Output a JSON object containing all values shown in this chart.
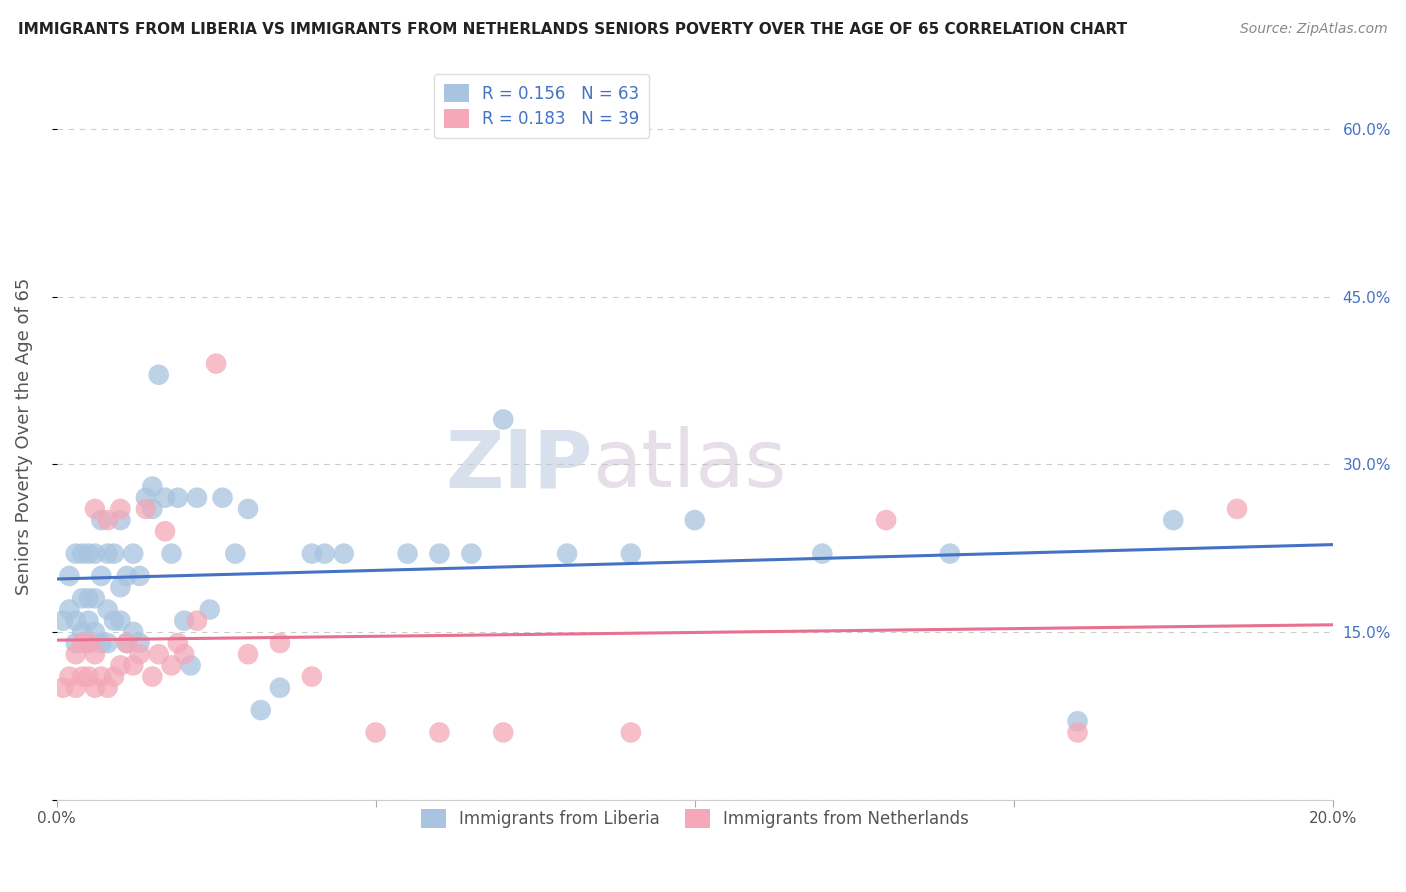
{
  "title": "IMMIGRANTS FROM LIBERIA VS IMMIGRANTS FROM NETHERLANDS SENIORS POVERTY OVER THE AGE OF 65 CORRELATION CHART",
  "source": "Source: ZipAtlas.com",
  "ylabel": "Seniors Poverty Over the Age of 65",
  "xlim": [
    0.0,
    0.2
  ],
  "ylim": [
    0.0,
    0.65
  ],
  "xticks": [
    0.0,
    0.05,
    0.1,
    0.15,
    0.2
  ],
  "xtick_labels": [
    "0.0%",
    "",
    "",
    "",
    "20.0%"
  ],
  "yticks": [
    0.0,
    0.15,
    0.3,
    0.45,
    0.6
  ],
  "ytick_labels_right": [
    "",
    "15.0%",
    "30.0%",
    "45.0%",
    "60.0%"
  ],
  "grid_color": "#cccccc",
  "background_color": "#ffffff",
  "liberia_color": "#a8c4e0",
  "netherlands_color": "#f4a8b8",
  "liberia_R": 0.156,
  "liberia_N": 63,
  "netherlands_R": 0.183,
  "netherlands_N": 39,
  "liberia_line_color": "#4472c4",
  "netherlands_line_color": "#e87090",
  "watermark_zip": "ZIP",
  "watermark_atlas": "atlas",
  "legend_label_liberia": "Immigrants from Liberia",
  "legend_label_netherlands": "Immigrants from Netherlands",
  "liberia_x": [
    0.001,
    0.002,
    0.002,
    0.003,
    0.003,
    0.003,
    0.004,
    0.004,
    0.004,
    0.005,
    0.005,
    0.005,
    0.005,
    0.006,
    0.006,
    0.006,
    0.007,
    0.007,
    0.007,
    0.008,
    0.008,
    0.008,
    0.009,
    0.009,
    0.01,
    0.01,
    0.01,
    0.011,
    0.011,
    0.012,
    0.012,
    0.013,
    0.013,
    0.014,
    0.015,
    0.015,
    0.016,
    0.017,
    0.018,
    0.019,
    0.02,
    0.021,
    0.022,
    0.024,
    0.026,
    0.028,
    0.03,
    0.032,
    0.035,
    0.04,
    0.042,
    0.045,
    0.055,
    0.06,
    0.065,
    0.07,
    0.08,
    0.09,
    0.1,
    0.12,
    0.14,
    0.16,
    0.175
  ],
  "liberia_y": [
    0.16,
    0.2,
    0.17,
    0.14,
    0.16,
    0.22,
    0.15,
    0.18,
    0.22,
    0.14,
    0.16,
    0.18,
    0.22,
    0.15,
    0.18,
    0.22,
    0.14,
    0.2,
    0.25,
    0.14,
    0.17,
    0.22,
    0.16,
    0.22,
    0.16,
    0.19,
    0.25,
    0.14,
    0.2,
    0.15,
    0.22,
    0.14,
    0.2,
    0.27,
    0.26,
    0.28,
    0.38,
    0.27,
    0.22,
    0.27,
    0.16,
    0.12,
    0.27,
    0.17,
    0.27,
    0.22,
    0.26,
    0.08,
    0.1,
    0.22,
    0.22,
    0.22,
    0.22,
    0.22,
    0.22,
    0.34,
    0.22,
    0.22,
    0.25,
    0.22,
    0.22,
    0.07,
    0.25
  ],
  "netherlands_x": [
    0.001,
    0.002,
    0.003,
    0.003,
    0.004,
    0.004,
    0.005,
    0.005,
    0.006,
    0.006,
    0.006,
    0.007,
    0.008,
    0.008,
    0.009,
    0.01,
    0.01,
    0.011,
    0.012,
    0.013,
    0.014,
    0.015,
    0.016,
    0.017,
    0.018,
    0.019,
    0.02,
    0.022,
    0.025,
    0.03,
    0.035,
    0.04,
    0.05,
    0.06,
    0.07,
    0.09,
    0.13,
    0.16,
    0.185
  ],
  "netherlands_y": [
    0.1,
    0.11,
    0.1,
    0.13,
    0.11,
    0.14,
    0.11,
    0.14,
    0.1,
    0.13,
    0.26,
    0.11,
    0.1,
    0.25,
    0.11,
    0.12,
    0.26,
    0.14,
    0.12,
    0.13,
    0.26,
    0.11,
    0.13,
    0.24,
    0.12,
    0.14,
    0.13,
    0.16,
    0.39,
    0.13,
    0.14,
    0.11,
    0.06,
    0.06,
    0.06,
    0.06,
    0.25,
    0.06,
    0.26
  ]
}
